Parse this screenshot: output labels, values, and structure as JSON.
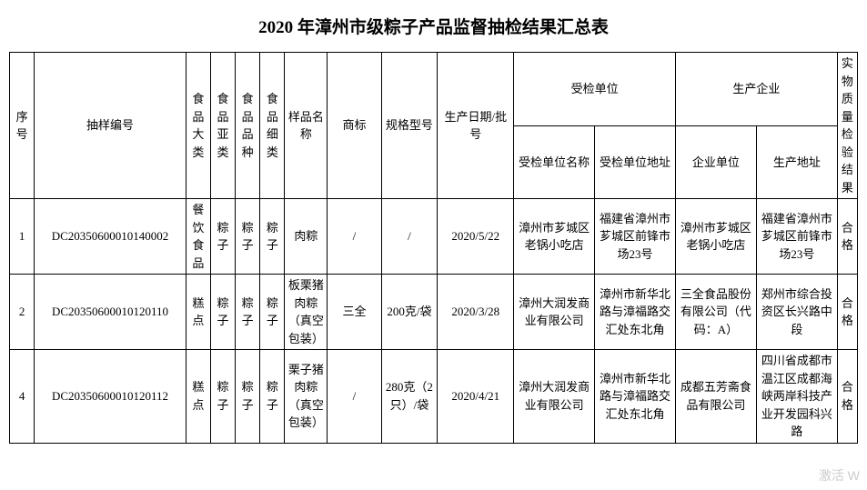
{
  "title": "2020 年漳州市级粽子产品监督抽检结果汇总表",
  "headers": {
    "seq": "序号",
    "sample_id": "抽样编号",
    "cat": "食品大类",
    "sub": "食品亚类",
    "var": "食品品种",
    "det": "食品细类",
    "name": "样品名称",
    "brand": "商标",
    "spec": "规格型号",
    "date": "生产日期/批号",
    "insp_group": "受检单位",
    "insp_name": "受检单位名称",
    "insp_addr": "受检单位地址",
    "prod_group": "生产企业",
    "prod_co": "企业单位",
    "prod_addr": "生产地址",
    "result": "实物质量检验结果"
  },
  "rows": [
    {
      "seq": "1",
      "id": "DC20350600010140002",
      "cat": "餐饮食品",
      "sub": "粽子",
      "var": "粽子",
      "det": "粽子",
      "name": "肉粽",
      "brand": "/",
      "spec": "/",
      "date": "2020/5/22",
      "insp_name": "漳州市芗城区老锅小吃店",
      "insp_addr": "福建省漳州市芗城区前锋市场23号",
      "prod_co": "漳州市芗城区老锅小吃店",
      "prod_addr": "福建省漳州市芗城区前锋市场23号",
      "result": "合格"
    },
    {
      "seq": "2",
      "id": "DC20350600010120110",
      "cat": "糕点",
      "sub": "粽子",
      "var": "粽子",
      "det": "粽子",
      "name": "板栗猪肉粽（真空包装）",
      "brand": "三全",
      "spec": "200克/袋",
      "date": "2020/3/28",
      "insp_name": "漳州大润发商业有限公司",
      "insp_addr": "漳州市新华北路与漳福路交汇处东北角",
      "prod_co": "三全食品股份有限公司（代码：A）",
      "prod_addr": "郑州市综合投资区长兴路中段",
      "result": "合格"
    },
    {
      "seq": "4",
      "id": "DC20350600010120112",
      "cat": "糕点",
      "sub": "粽子",
      "var": "粽子",
      "det": "粽子",
      "name": "栗子猪肉粽（真空包装）",
      "brand": "/",
      "spec": "280克（2只）/袋",
      "date": "2020/4/21",
      "insp_name": "漳州大润发商业有限公司",
      "insp_addr": "漳州市新华北路与漳福路交汇处东北角",
      "prod_co": "成都五芳斋食品有限公司",
      "prod_addr": "四川省成都市温江区成都海峡两岸科技产业开发园科兴路",
      "result": "合格"
    }
  ],
  "watermark": "激活 W"
}
